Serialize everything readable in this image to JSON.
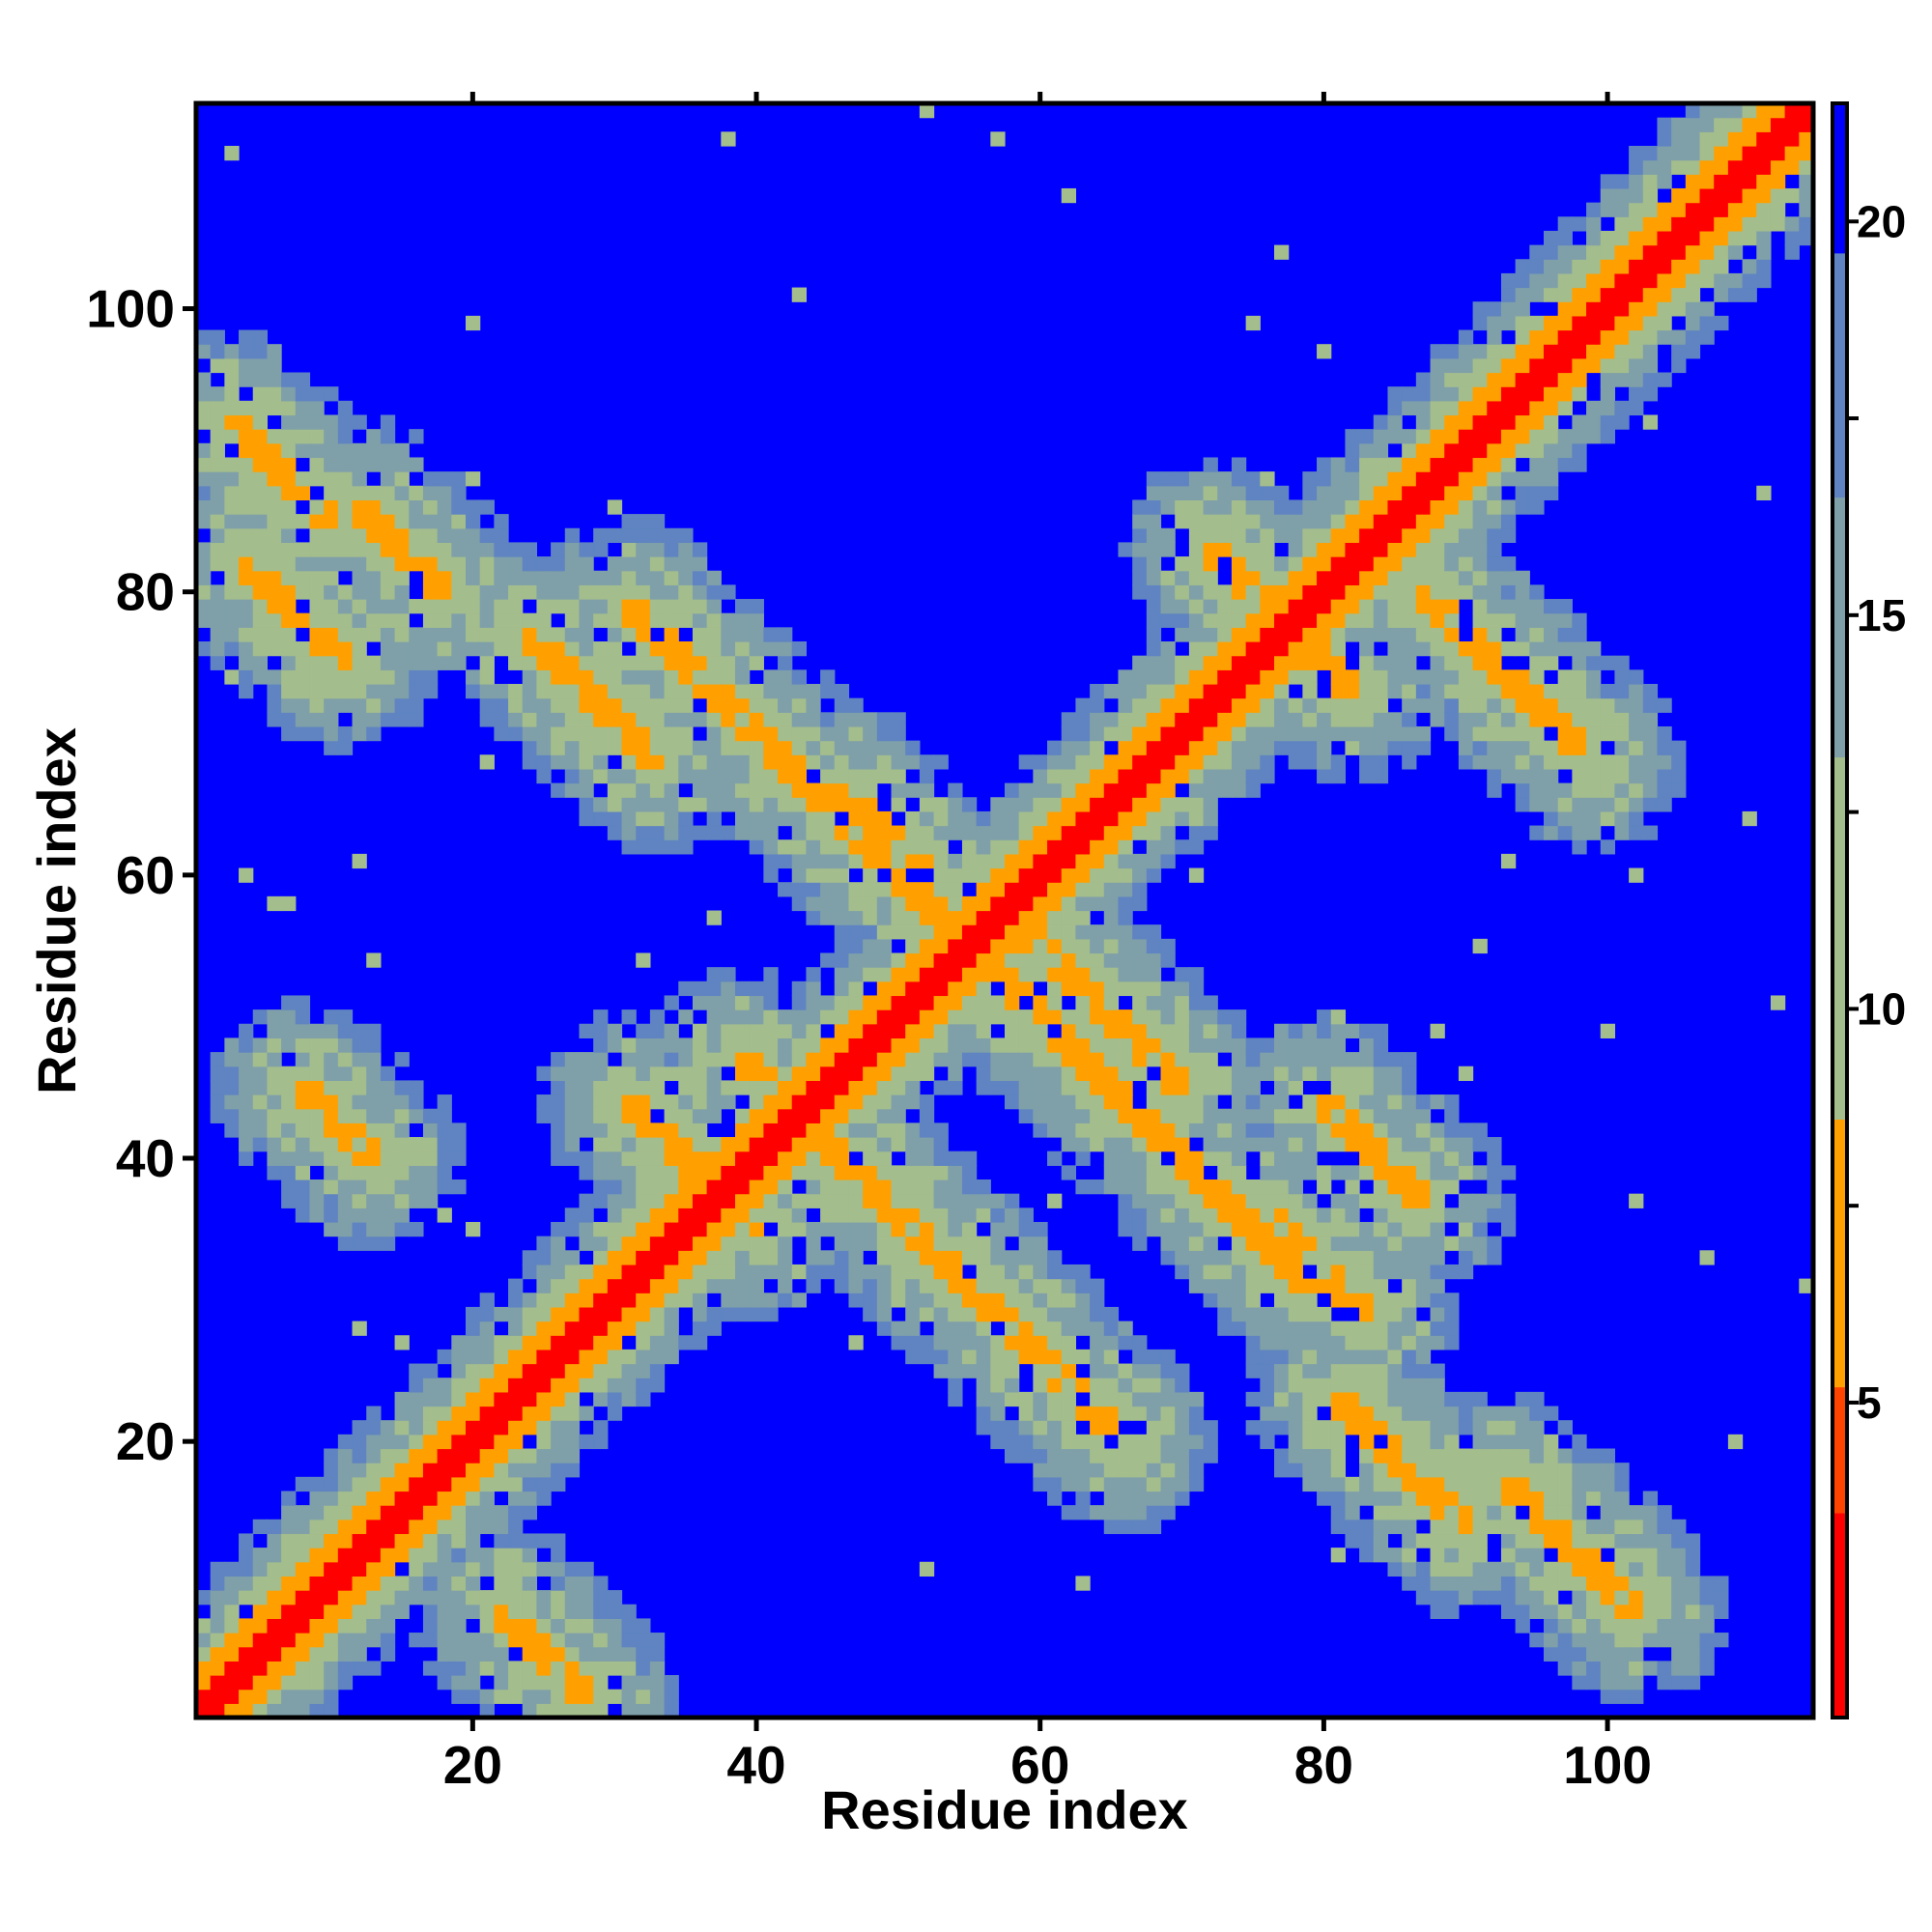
{
  "chart_data": {
    "type": "heatmap",
    "title": "",
    "xlabel": "Residue index",
    "ylabel": "Residue index",
    "n_residues": 114,
    "xlim": [
      0.5,
      114.5
    ],
    "ylim": [
      0.5,
      114.5
    ],
    "x_ticks": [
      20,
      40,
      60,
      80,
      100
    ],
    "y_ticks": [
      20,
      40,
      60,
      80,
      100
    ],
    "x_tick_labels": [
      "20",
      "40",
      "60",
      "80",
      "100"
    ],
    "y_tick_labels": [
      "20",
      "40",
      "60",
      "80",
      "100"
    ],
    "colorbar": {
      "range": [
        1,
        21.5
      ],
      "ticks": [
        5,
        10,
        15,
        20
      ],
      "tick_labels": [
        "5",
        "10",
        "15",
        "20"
      ],
      "position": "right",
      "bands": [
        {
          "from": 1,
          "to": 3.6,
          "color": "#ff0000"
        },
        {
          "from": 3.6,
          "to": 5.2,
          "color": "#ff4400"
        },
        {
          "from": 5.2,
          "to": 8.6,
          "color": "#ffa000"
        },
        {
          "from": 8.6,
          "to": 13.2,
          "color": "#a4bd8c"
        },
        {
          "from": 13.2,
          "to": 16.5,
          "color": "#7fa0a9"
        },
        {
          "from": 16.5,
          "to": 19.6,
          "color": "#5f84c1"
        },
        {
          "from": 19.6,
          "to": 21.5,
          "color": "#0000ff"
        }
      ]
    },
    "contact_bands": [
      {
        "kind": "diagonal",
        "c": 0,
        "from": 1,
        "to": 114
      },
      {
        "kind": "anti",
        "s": 110,
        "from": 31,
        "to": 79
      },
      {
        "kind": "anti",
        "s": 95,
        "from": 3,
        "to": 10
      },
      {
        "kind": "anti",
        "s": 98,
        "from": 12,
        "to": 18
      },
      {
        "kind": "anti",
        "s": 86,
        "from": 4,
        "to": 11
      },
      {
        "kind": "anti",
        "s": 101,
        "from": 24,
        "to": 33
      },
      {
        "kind": "anti",
        "s": 112,
        "from": 46,
        "to": 53
      },
      {
        "kind": "anti",
        "s": 104,
        "from": 81,
        "to": 90
      },
      {
        "kind": "anti",
        "s": 155,
        "from": 72,
        "to": 82
      },
      {
        "kind": "anti",
        "s": 167,
        "from": 87,
        "to": 99
      },
      {
        "kind": "anti",
        "s": 75,
        "from": 31,
        "to": 40
      },
      {
        "kind": "anti",
        "s": 124,
        "from": 80,
        "to": 87
      },
      {
        "kind": "anti",
        "s": 110,
        "from": 93,
        "to": 102
      },
      {
        "kind": "anti",
        "s": 86,
        "from": 51,
        "to": 66
      },
      {
        "kind": "anti",
        "s": 53,
        "from": 8,
        "to": 13
      },
      {
        "kind": "anti",
        "s": 30,
        "from": 22,
        "to": 28
      },
      {
        "kind": "anti",
        "s": 112,
        "from": 76,
        "to": 83
      },
      {
        "kind": "anti",
        "s": 115,
        "from": 59,
        "to": 70
      },
      {
        "kind": "anti",
        "s": 86,
        "from": 39,
        "to": 52
      }
    ]
  }
}
